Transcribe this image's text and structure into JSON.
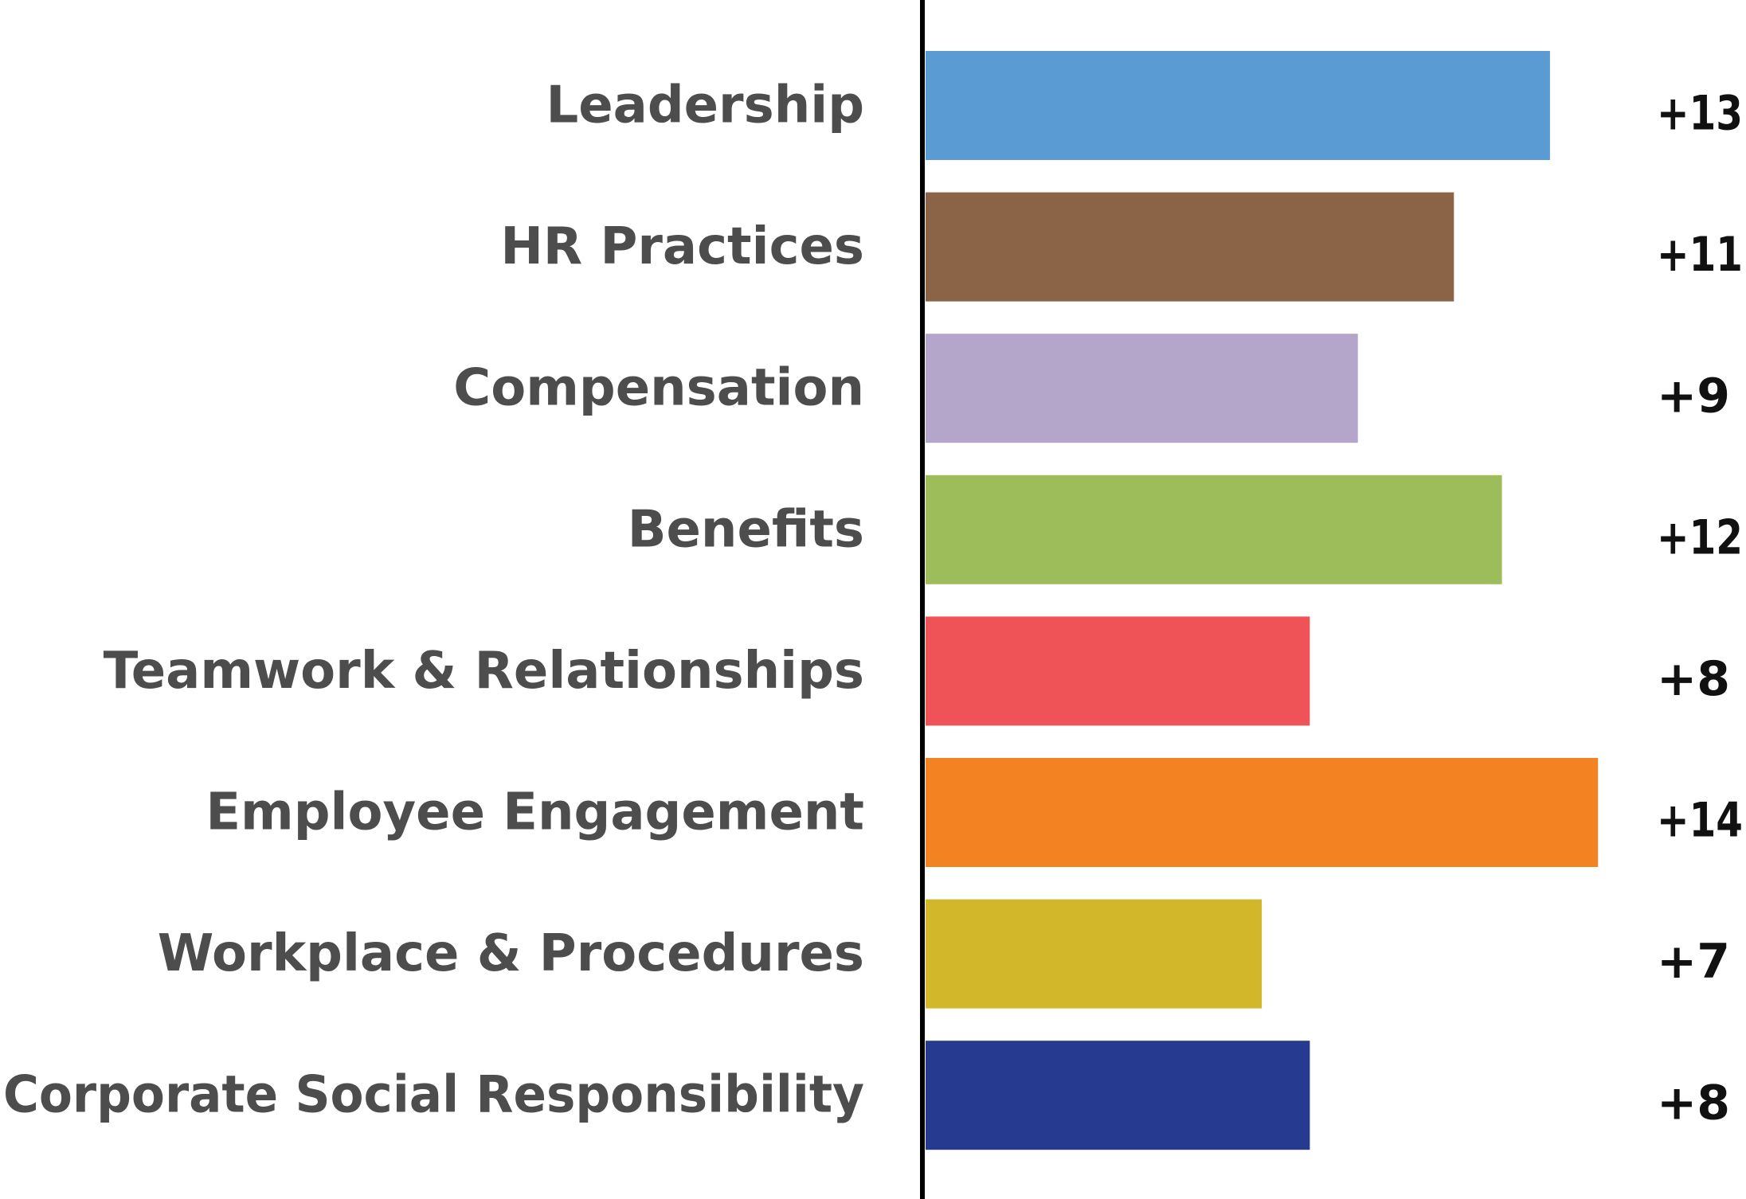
{
  "chart_data": {
    "type": "bar",
    "orientation": "horizontal",
    "categories": [
      "Leadership",
      "HR Practices",
      "Compensation",
      "Benefits",
      "Teamwork & Relationships",
      "Employee Engagement",
      "Workplace & Procedures",
      "Corporate Social Responsibility"
    ],
    "values": [
      13,
      11,
      9,
      12,
      8,
      14,
      7,
      8
    ],
    "value_labels": [
      "+13",
      "+11",
      "+9",
      "+12",
      "+8",
      "+14",
      "+7",
      "+8"
    ],
    "colors": [
      "#5b9bd3",
      "#8b6447",
      "#b4a5cb",
      "#9dbd5b",
      "#ef5257",
      "#f28222",
      "#d2b72b",
      "#263a8f"
    ],
    "title": "",
    "xlabel": "",
    "ylabel": "",
    "grid": false,
    "legend": "none",
    "axis_color": "#000000"
  }
}
